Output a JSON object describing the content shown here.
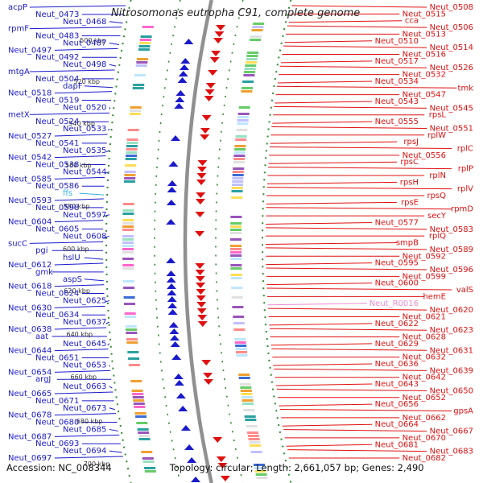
{
  "title": "Nitrosomonas eutropha C91, complete genome",
  "footer": {
    "accession": "Accession: NC_008344",
    "topology": "Topology: circular; Length: 2,661,057 bp; Genes: 2,490"
  },
  "colors": {
    "left_genes": "#1a1acc",
    "right_genes": "#e01010",
    "ffs": "#33b5e5",
    "rna": "#e88ccc"
  },
  "ticks": [
    "500 kbp",
    "520 kbp",
    "540 kbp",
    "560 kbp",
    "580 kbp",
    "600 kbp",
    "620 kbp",
    "640 kbp",
    "660 kbp",
    "680 kbp",
    "700 kbp"
  ],
  "left_labels": [
    "acpP",
    "Neut_0473",
    "Neut_0468",
    "rpmF",
    "Neut_0483",
    "Neut_0487",
    "Neut_0497",
    "Neut_0492",
    "Neut_0498",
    "mtgA",
    "Neut_0504",
    "dapF",
    "Neut_0518",
    "Neut_0519",
    "Neut_0520",
    "metX",
    "Neut_0524",
    "Neut_0533",
    "Neut_0527",
    "Neut_0541",
    "Neut_0535",
    "Neut_0542",
    "Neut_0538",
    "Neut_0544",
    "Neut_0585",
    "Neut_0586",
    "ffs",
    "Neut_0593",
    "Neut_0598",
    "Neut_0597",
    "Neut_0604",
    "Neut_0605",
    "Neut_0608",
    "sucC",
    "pgi",
    "hslU",
    "Neut_0612",
    "gmk",
    "aspS",
    "Neut_0618",
    "Neut_0624",
    "Neut_0625",
    "Neut_0630",
    "Neut_0634",
    "Neut_0637",
    "Neut_0638",
    "aat",
    "Neut_0645",
    "Neut_0644",
    "Neut_0651",
    "Neut_0653",
    "Neut_0654",
    "argJ",
    "Neut_0663",
    "Neut_0665",
    "Neut_0671",
    "Neut_0673",
    "Neut_0678",
    "Neut_0680",
    "Neut_0685",
    "Neut_0687",
    "Neut_0693",
    "Neut_0694",
    "Neut_0697"
  ],
  "right_labels": [
    "Neut_0508",
    "Neut_0515",
    "cca",
    "Neut_0506",
    "Neut_0513",
    "Neut_0510",
    "Neut_0514",
    "Neut_0516",
    "Neut_0517",
    "Neut_0526",
    "Neut_0532",
    "Neut_0534",
    "tmk",
    "Neut_0547",
    "Neut_0543",
    "Neut_0545",
    "rpsL",
    "Neut_0555",
    "Neut_0551",
    "rplW",
    "rpsJ",
    "rplC",
    "Neut_0556",
    "rpsC",
    "rplP",
    "rplN",
    "rpsH",
    "rplV",
    "rpsQ",
    "rpsE",
    "rpmD",
    "secY",
    "Neut_0577",
    "Neut_0583",
    "rplQ",
    "smpB",
    "Neut_0589",
    "Neut_0592",
    "Neut_0595",
    "Neut_0596",
    "Neut_0599",
    "Neut_0600",
    "valS",
    "hemE",
    "Neut_R0016",
    "Neut_0620",
    "Neut_0621",
    "Neut_0622",
    "Neut_0623",
    "Neut_0628",
    "Neut_0629",
    "Neut_0631",
    "Neut_0632",
    "Neut_0636",
    "Neut_0639",
    "Neut_0642",
    "Neut_0643",
    "Neut_0650",
    "Neut_0652",
    "Neut_0656",
    "gpsA",
    "Neut_0662",
    "Neut_0664",
    "Neut_0667",
    "Neut_0670",
    "Neut_0681",
    "Neut_0683",
    "Neut_0682"
  ]
}
